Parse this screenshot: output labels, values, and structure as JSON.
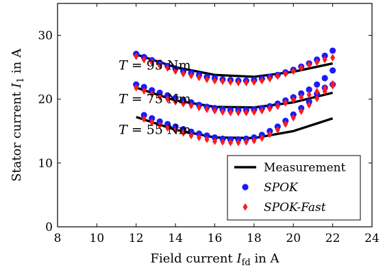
{
  "chart_data": {
    "type": "scatter",
    "xlabel": {
      "prefix": "Field current ",
      "var": "I",
      "sub": "fd",
      "suffix": " in A"
    },
    "ylabel": {
      "prefix": "Stator current ",
      "var": "I",
      "sub": "1",
      "suffix": " in A"
    },
    "xlim": [
      8,
      24
    ],
    "ylim": [
      0,
      35
    ],
    "xticks": [
      8,
      10,
      12,
      14,
      16,
      18,
      20,
      22,
      24
    ],
    "yticks": [
      0,
      10,
      20,
      30
    ],
    "grid": false,
    "legend_position": "bottom-right",
    "annotations": [
      {
        "var": "T",
        "eq": " = 95 Nm",
        "x": 12.5,
        "y": 25.3
      },
      {
        "var": "T",
        "eq": " = 75 Nm",
        "x": 12.5,
        "y": 20.0
      },
      {
        "var": "T",
        "eq": " = 55 Nm",
        "x": 12.5,
        "y": 15.2
      }
    ],
    "x": [
      12.0,
      12.4,
      12.8,
      13.2,
      13.6,
      14.0,
      14.4,
      14.8,
      15.2,
      15.6,
      16.0,
      16.4,
      16.8,
      17.2,
      17.6,
      18.0,
      18.4,
      18.8,
      19.2,
      19.6,
      20.0,
      20.4,
      20.8,
      21.2,
      21.6,
      22.0
    ],
    "series": [
      {
        "name": "Measurement",
        "style": "line",
        "color": "#000000",
        "group": "95 Nm",
        "x": [
          12.0,
          14.0,
          16.0,
          18.0,
          20.0,
          22.0
        ],
        "values": [
          27.0,
          25.0,
          23.8,
          23.5,
          24.3,
          25.6
        ]
      },
      {
        "name": "Measurement",
        "style": "line",
        "color": "#000000",
        "group": "75 Nm",
        "x": [
          12.0,
          14.0,
          16.0,
          18.0,
          20.0,
          22.0
        ],
        "values": [
          21.8,
          19.8,
          18.8,
          18.7,
          19.5,
          21.0
        ]
      },
      {
        "name": "Measurement",
        "style": "line",
        "color": "#000000",
        "group": "55 Nm",
        "x": [
          12.0,
          14.0,
          16.0,
          18.0,
          20.0,
          22.0
        ],
        "values": [
          17.2,
          15.2,
          14.0,
          13.9,
          15.0,
          17.0
        ]
      },
      {
        "name": "SPOK",
        "style": "circle",
        "color": "#1a1aff",
        "group": "95 Nm",
        "values": [
          27.1,
          26.6,
          26.1,
          25.7,
          25.2,
          24.8,
          24.4,
          24.1,
          23.8,
          23.5,
          23.3,
          23.1,
          23.0,
          22.9,
          22.9,
          23.0,
          23.2,
          23.5,
          23.8,
          24.2,
          24.6,
          25.1,
          25.6,
          26.2,
          26.8,
          27.6
        ]
      },
      {
        "name": "SPOK",
        "style": "circle",
        "color": "#1a1aff",
        "group": "75 Nm",
        "values": [
          22.3,
          21.9,
          21.4,
          21.0,
          20.6,
          20.2,
          19.8,
          19.5,
          19.1,
          18.8,
          18.6,
          18.4,
          18.3,
          18.3,
          18.3,
          18.4,
          18.6,
          18.9,
          19.3,
          19.8,
          20.3,
          20.9,
          21.5,
          22.3,
          23.3,
          24.5
        ]
      },
      {
        "name": "SPOK",
        "style": "circle",
        "color": "#1a1aff",
        "group": "55 Nm",
        "values": [
          null,
          17.5,
          17.0,
          16.5,
          16.1,
          15.7,
          15.3,
          14.9,
          14.6,
          14.3,
          14.0,
          13.8,
          13.7,
          13.7,
          13.8,
          14.0,
          14.4,
          15.0,
          15.7,
          16.6,
          17.6,
          18.6,
          19.6,
          20.8,
          21.8,
          22.3
        ]
      },
      {
        "name": "SPOK-Fast",
        "style": "diamond",
        "color": "#ff1a1a",
        "group": "95 Nm",
        "values": [
          26.7,
          26.2,
          25.8,
          25.3,
          24.9,
          24.4,
          24.0,
          23.7,
          23.4,
          23.1,
          22.9,
          22.8,
          22.7,
          22.6,
          22.6,
          22.7,
          22.9,
          23.2,
          23.6,
          24.0,
          24.4,
          24.9,
          25.4,
          25.8,
          26.2,
          26.5
        ]
      },
      {
        "name": "SPOK-Fast",
        "style": "diamond",
        "color": "#ff1a1a",
        "group": "75 Nm",
        "values": [
          21.8,
          21.3,
          20.8,
          20.4,
          20.0,
          19.6,
          19.3,
          19.0,
          18.7,
          18.4,
          18.2,
          18.0,
          17.9,
          17.9,
          17.9,
          18.0,
          18.2,
          18.5,
          18.9,
          19.4,
          19.9,
          20.3,
          20.7,
          21.2,
          21.7,
          22.4
        ]
      },
      {
        "name": "SPOK-Fast",
        "style": "diamond",
        "color": "#ff1a1a",
        "group": "55 Nm",
        "values": [
          null,
          16.9,
          16.4,
          15.9,
          15.5,
          15.1,
          14.7,
          14.3,
          14.0,
          13.7,
          13.4,
          13.3,
          13.2,
          13.2,
          13.3,
          13.5,
          13.9,
          14.5,
          15.2,
          16.1,
          17.1,
          18.1,
          19.1,
          20.1,
          21.2,
          22.1
        ]
      }
    ],
    "legend": [
      {
        "label": "Measurement",
        "style": "line",
        "color": "#000000",
        "italic": false
      },
      {
        "label": "SPOK",
        "style": "circle",
        "color": "#1a1aff",
        "italic": true
      },
      {
        "label": "SPOK-Fast",
        "style": "diamond",
        "color": "#ff1a1a",
        "italic": true
      }
    ]
  }
}
